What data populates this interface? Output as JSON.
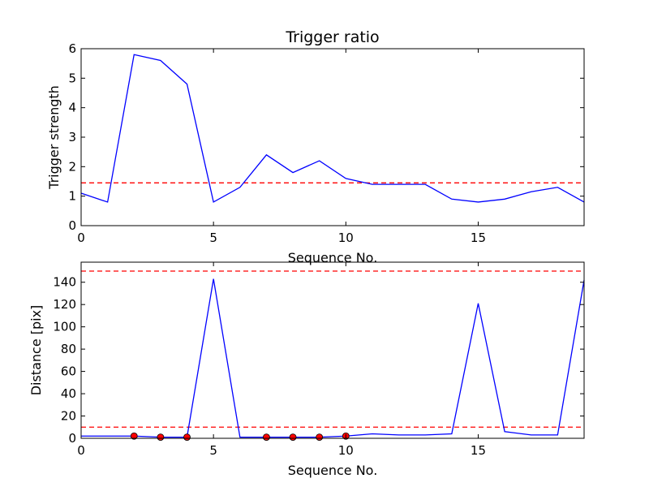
{
  "chart_data": [
    {
      "type": "line",
      "title": "Trigger ratio",
      "xlabel": "Sequence No.",
      "ylabel": "Trigger strength",
      "xlim": [
        0,
        19
      ],
      "ylim": [
        0,
        6
      ],
      "xticks": [
        "0",
        "5",
        "10",
        "15"
      ],
      "yticks": [
        "0",
        "1",
        "2",
        "3",
        "4",
        "5",
        "6"
      ],
      "line_color": "#0000ff",
      "threshold_color": "#ff0000",
      "series": [
        {
          "x": [
            0,
            1,
            2,
            3,
            4,
            5,
            6,
            7,
            8,
            9,
            10,
            11,
            12,
            13,
            14,
            15,
            16,
            17,
            18,
            19
          ],
          "values": [
            1.1,
            0.8,
            5.8,
            5.6,
            4.8,
            0.8,
            1.3,
            2.4,
            1.8,
            2.2,
            1.6,
            1.4,
            1.4,
            1.4,
            0.9,
            0.8,
            0.9,
            1.15,
            1.3,
            0.8
          ]
        }
      ],
      "thresholds": [
        1.45
      ]
    },
    {
      "type": "line",
      "title": "",
      "xlabel": "Sequence No.",
      "ylabel": "Distance [pix]",
      "xlim": [
        0,
        19
      ],
      "ylim": [
        0,
        158
      ],
      "xticks": [
        "0",
        "5",
        "10",
        "15"
      ],
      "yticks": [
        "0",
        "20",
        "40",
        "60",
        "80",
        "100",
        "120",
        "140"
      ],
      "line_color": "#0000ff",
      "threshold_color": "#ff0000",
      "marker_color": "#ff0000",
      "series": [
        {
          "x": [
            0,
            1,
            2,
            3,
            4,
            5,
            6,
            7,
            8,
            9,
            10,
            11,
            12,
            13,
            14,
            15,
            16,
            17,
            18,
            19
          ],
          "values": [
            2,
            2,
            2,
            1,
            1,
            143,
            1,
            1,
            1,
            1,
            2,
            4,
            3,
            3,
            4,
            121,
            6,
            3,
            3,
            142
          ]
        }
      ],
      "markers": {
        "x": [
          2,
          3,
          4,
          7,
          8,
          9,
          10
        ],
        "y": [
          2,
          1,
          1,
          1,
          1,
          1,
          2
        ]
      },
      "thresholds": [
        10,
        150
      ]
    }
  ]
}
